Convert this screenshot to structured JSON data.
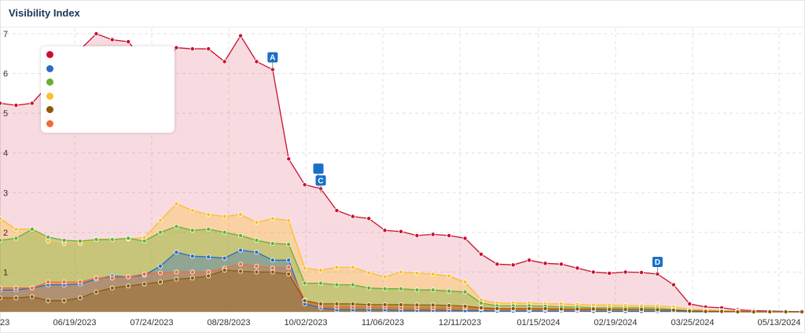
{
  "header": {
    "title": "Visibility Index"
  },
  "chart_data": {
    "type": "area",
    "title": "Visibility Index",
    "ylim": [
      0,
      7
    ],
    "yticks": [
      1,
      2,
      3,
      4,
      5,
      6,
      7
    ],
    "grid": true,
    "legend_position": "top-left",
    "x_tick_labels": [
      "23",
      "06/19/2023",
      "07/24/2023",
      "08/28/2023",
      "10/02/2023",
      "11/06/2023",
      "12/11/2023",
      "01/15/2024",
      "02/19/2024",
      "03/25/2024",
      "05/13/2024"
    ],
    "series": [
      {
        "color": "#c8102e",
        "values": [
          5.25,
          5.2,
          5.25,
          5.7,
          6.1,
          6.6,
          7.0,
          6.85,
          6.8,
          6.3,
          6.1,
          6.65,
          6.62,
          6.62,
          6.3,
          6.95,
          6.3,
          6.1,
          3.85,
          3.2,
          3.1,
          2.55,
          2.4,
          2.35,
          2.05,
          2.02,
          1.92,
          1.95,
          1.92,
          1.85,
          1.45,
          1.2,
          1.18,
          1.3,
          1.22,
          1.2,
          1.1,
          1.0,
          0.97,
          1.0,
          0.99,
          0.95,
          0.68,
          0.2,
          0.12,
          0.1,
          0.05,
          0.03,
          0.02,
          0.01,
          0.0
        ]
      },
      {
        "color": "#fbc02d",
        "values": [
          2.35,
          2.08,
          2.08,
          1.78,
          1.72,
          1.72,
          1.83,
          1.83,
          1.83,
          1.87,
          2.3,
          2.72,
          2.55,
          2.45,
          2.4,
          2.45,
          2.25,
          2.35,
          2.3,
          1.1,
          1.05,
          1.12,
          1.12,
          0.98,
          0.88,
          1.0,
          0.97,
          0.95,
          0.9,
          0.75,
          0.3,
          0.22,
          0.22,
          0.22,
          0.2,
          0.2,
          0.18,
          0.17,
          0.17,
          0.16,
          0.15,
          0.15,
          0.12,
          0.07,
          0.05,
          0.03,
          0.02,
          0.01,
          0.01,
          0.0,
          0.0
        ]
      },
      {
        "color": "#66b032",
        "values": [
          1.8,
          1.85,
          2.08,
          1.88,
          1.8,
          1.78,
          1.82,
          1.82,
          1.85,
          1.78,
          2.0,
          2.15,
          2.05,
          2.08,
          2.0,
          1.92,
          1.8,
          1.72,
          1.7,
          0.72,
          0.72,
          0.68,
          0.68,
          0.6,
          0.58,
          0.58,
          0.55,
          0.55,
          0.52,
          0.5,
          0.22,
          0.15,
          0.15,
          0.15,
          0.14,
          0.12,
          0.12,
          0.1,
          0.1,
          0.1,
          0.1,
          0.09,
          0.06,
          0.03,
          0.02,
          0.01,
          0.01,
          0.0,
          0.0,
          0.0,
          0.0
        ]
      },
      {
        "color": "#2b6cc4",
        "values": [
          0.55,
          0.55,
          0.6,
          0.68,
          0.68,
          0.7,
          0.82,
          0.9,
          0.88,
          0.92,
          1.15,
          1.5,
          1.4,
          1.38,
          1.35,
          1.55,
          1.5,
          1.3,
          1.3,
          0.2,
          0.1,
          0.05,
          0.05,
          0.05,
          0.05,
          0.04,
          0.04,
          0.04,
          0.04,
          0.03,
          0.03,
          0.02,
          0.02,
          0.02,
          0.02,
          0.02,
          0.02,
          0.01,
          0.01,
          0.01,
          0.01,
          0.01,
          0.01,
          0.0,
          0.0,
          0.0,
          0.0,
          0.0,
          0.0,
          0.0,
          0.0
        ]
      },
      {
        "color": "#f26b38",
        "values": [
          0.6,
          0.6,
          0.6,
          0.75,
          0.75,
          0.75,
          0.85,
          0.85,
          0.88,
          0.95,
          0.98,
          1.0,
          1.0,
          1.0,
          1.1,
          1.2,
          1.15,
          1.1,
          1.12,
          0.3,
          0.15,
          0.12,
          0.12,
          0.12,
          0.12,
          0.1,
          0.1,
          0.1,
          0.1,
          0.1,
          0.08,
          0.06,
          0.06,
          0.06,
          0.06,
          0.05,
          0.05,
          0.05,
          0.05,
          0.05,
          0.05,
          0.04,
          0.03,
          0.02,
          0.02,
          0.01,
          0.01,
          0.0,
          0.0,
          0.0,
          0.0
        ]
      },
      {
        "color": "#8b5a0b",
        "values": [
          0.35,
          0.35,
          0.38,
          0.28,
          0.28,
          0.35,
          0.5,
          0.6,
          0.65,
          0.7,
          0.75,
          0.82,
          0.85,
          0.9,
          1.05,
          1.02,
          1.0,
          1.0,
          0.95,
          0.28,
          0.2,
          0.2,
          0.2,
          0.18,
          0.18,
          0.18,
          0.17,
          0.17,
          0.16,
          0.14,
          0.1,
          0.08,
          0.08,
          0.08,
          0.08,
          0.07,
          0.07,
          0.07,
          0.06,
          0.06,
          0.06,
          0.05,
          0.04,
          0.02,
          0.01,
          0.01,
          0.0,
          0.0,
          0.0,
          0.0,
          0.0
        ]
      }
    ],
    "markers": [
      {
        "label": "A",
        "x_index": 17,
        "value": 6.1
      },
      {
        "label": "",
        "x_index": 20,
        "value": 3.1
      },
      {
        "label": "C",
        "x_index": 20,
        "value": 3.0
      },
      {
        "label": "D",
        "x_index": 41,
        "value": 0.95
      }
    ]
  }
}
